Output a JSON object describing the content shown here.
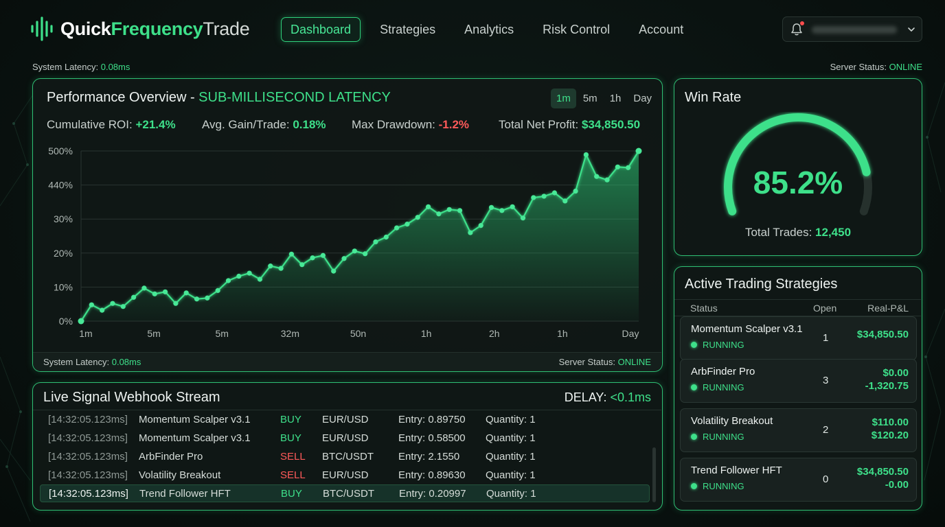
{
  "header": {
    "logo": {
      "part1": "Quick",
      "part2": "Frequency",
      "part3": "Trade"
    },
    "nav": [
      {
        "label": "Dashboard",
        "active": true
      },
      {
        "label": "Strategies",
        "active": false
      },
      {
        "label": "Analytics",
        "active": false
      },
      {
        "label": "Risk Control",
        "active": false
      },
      {
        "label": "Account",
        "active": false
      }
    ],
    "user_menu": {
      "icon": "bell-icon",
      "chevron": "chevron-down-icon"
    }
  },
  "status": {
    "latency_label": "System Latency:",
    "latency_value": "0.08ms",
    "server_label": "Server Status:",
    "server_value": "ONLINE"
  },
  "performance": {
    "title": "Performance Overview - ",
    "title_accent": "SUB-MILLISECOND LATENCY",
    "timeframes": [
      "1m",
      "5m",
      "1h",
      "Day"
    ],
    "active_timeframe": "1m",
    "stats": [
      {
        "label": "Cumulative ROI:",
        "value": "+21.4%",
        "tone": "green"
      },
      {
        "label": "Avg. Gain/Trade:",
        "value": "0.18%",
        "tone": "green"
      },
      {
        "label": "Max Drawdown:",
        "value": "-1.2%",
        "tone": "red"
      },
      {
        "label": "Total Net Profit:",
        "value": "$34,850.50",
        "tone": "green"
      }
    ]
  },
  "chart_data": {
    "type": "line",
    "style": "area-with-markers",
    "y_tick_labels": [
      "0%",
      "10%",
      "20%",
      "30%",
      "440%",
      "500%"
    ],
    "x_tick_labels": [
      "1m",
      "5m",
      "5m",
      "32m",
      "50n",
      "1h",
      "2h",
      "1h",
      "Day"
    ],
    "ylim": [
      0,
      50
    ],
    "grid": true,
    "color": "#3ee08a",
    "values": [
      0,
      4.8,
      3.2,
      5.2,
      4.3,
      7,
      9.7,
      8,
      8.6,
      5.2,
      8.3,
      6.5,
      6.8,
      9,
      11.9,
      13.2,
      14.1,
      12.3,
      16.2,
      15.5,
      19.7,
      16.6,
      18.6,
      19.3,
      14.7,
      18.4,
      20.6,
      19.8,
      23.3,
      24.7,
      27.4,
      28.5,
      30.5,
      33.6,
      31.5,
      32.8,
      32.5,
      26,
      28.1,
      33.4,
      32.5,
      33.6,
      30.3,
      36.3,
      36.7,
      37.7,
      35.3,
      38.2,
      48.9,
      42.5,
      41.5,
      45.3,
      45.1,
      50
    ]
  },
  "win_rate": {
    "title": "Win Rate",
    "value": "85.2%",
    "fraction": 0.852,
    "trades_label": "Total Trades:",
    "trades_value": "12,450"
  },
  "strategies": {
    "title": "Active Trading Strategies",
    "columns": [
      "Status",
      "Open",
      "Real-P&L"
    ],
    "rows": [
      {
        "name": "Momentum Scalper v3.1",
        "status": "RUNNING",
        "open": "1",
        "pnl": [
          "$34,850.50"
        ]
      },
      {
        "name": "ArbFinder Pro",
        "status": "RUNNING",
        "open": "3",
        "pnl": [
          "$0.00",
          "-1,320.75"
        ]
      },
      {
        "name": "Volatility Breakout",
        "status": "RUNNING",
        "open": "2",
        "pnl": [
          "$110.00",
          "$120.20"
        ]
      },
      {
        "name": "Trend Follower HFT",
        "status": "RUNNING",
        "open": "0",
        "pnl": [
          "$34,850.50",
          "-0.00"
        ]
      }
    ]
  },
  "stream": {
    "title": "Live Signal Webhook Stream",
    "delay_label": "DELAY:",
    "delay_value": "<0.1ms",
    "rows": [
      {
        "time": "[14:32:05.123ms]",
        "strategy": "Momentum Scalper v3.1",
        "side": "BUY",
        "pair": "EUR/USD",
        "entry": "Entry: 0.89750",
        "qty": "Quantity: 1"
      },
      {
        "time": "[14:32:05.123ms]",
        "strategy": "Momentum Scalper v3.1",
        "side": "BUY",
        "pair": "EUR/USD",
        "entry": "Entry: 0.58500",
        "qty": "Quantity: 1"
      },
      {
        "time": "[14:32:05.123ms]",
        "strategy": "ArbFinder Pro",
        "side": "SELL",
        "pair": "BTC/USDT",
        "entry": "Entry: 2.1550",
        "qty": "Quantity: 1"
      },
      {
        "time": "[14:32:05.123ms]",
        "strategy": "Volatility Breakout",
        "side": "SELL",
        "pair": "EUR/USD",
        "entry": "Entry: 0.89630",
        "qty": "Quantity: 1"
      },
      {
        "time": "[14:32:05.123ms]",
        "strategy": "Trend Follower HFT",
        "side": "BUY",
        "pair": "BTC/USDT",
        "entry": "Entry: 0.20997",
        "qty": "Quantity: 1"
      }
    ]
  }
}
